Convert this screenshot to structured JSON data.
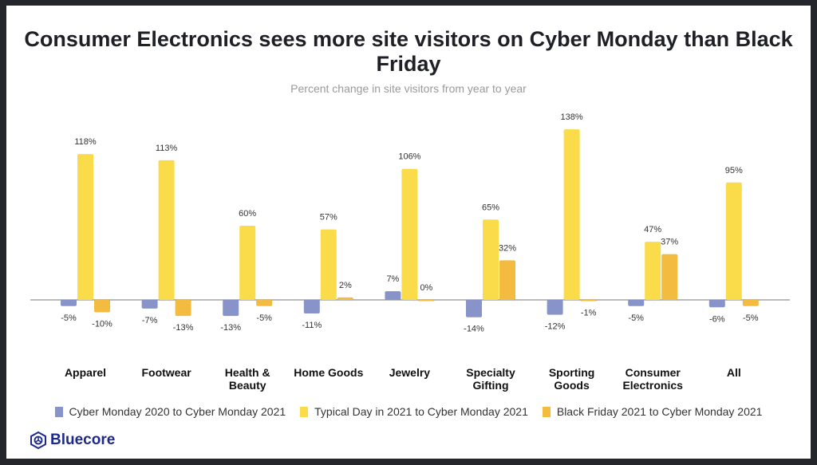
{
  "chart_data": {
    "type": "bar",
    "title": "Consumer Electronics sees more site visitors on Cyber Monday than Black Friday",
    "subtitle": "Percent change in site visitors from year to year",
    "categories": [
      [
        "Apparel"
      ],
      [
        "Footwear"
      ],
      [
        "Health &",
        "Beauty"
      ],
      [
        "Home Goods"
      ],
      [
        "Jewelry"
      ],
      [
        "Specialty",
        "Gifting"
      ],
      [
        "Sporting",
        "Goods"
      ],
      [
        "Consumer",
        "Electronics"
      ],
      [
        "All"
      ]
    ],
    "series": [
      {
        "name": "Cyber Monday 2020 to Cyber Monday 2021",
        "color": "#8793c9",
        "values": [
          -5,
          -7,
          -13,
          -11,
          7,
          -14,
          -12,
          -5,
          -6
        ]
      },
      {
        "name": "Typical Day in 2021 to Cyber Monday 2021",
        "color": "#fadc4b",
        "values": [
          118,
          113,
          60,
          57,
          106,
          65,
          138,
          47,
          95
        ]
      },
      {
        "name": "Black Friday 2021 to Cyber Monday 2021",
        "color": "#f3bb3f",
        "values": [
          -10,
          -13,
          -5,
          2,
          0,
          32,
          -1,
          37,
          -5
        ]
      }
    ],
    "labels": [
      [
        "-5%",
        "-7%",
        "-13%",
        "-11%",
        "7%",
        "-14%",
        "-12%",
        "-5%",
        "-6%"
      ],
      [
        "118%",
        "113%",
        "60%",
        "57%",
        "106%",
        "65%",
        "138%",
        "47%",
        "95%"
      ],
      [
        "-10%",
        "-13%",
        "-5%",
        "2%",
        "0%",
        "32%",
        "-1%",
        "37%",
        "-5%"
      ]
    ],
    "yaxis_visible": false,
    "grid": false,
    "legend_position": "bottom"
  },
  "brand": {
    "name": "Bluecore"
  }
}
